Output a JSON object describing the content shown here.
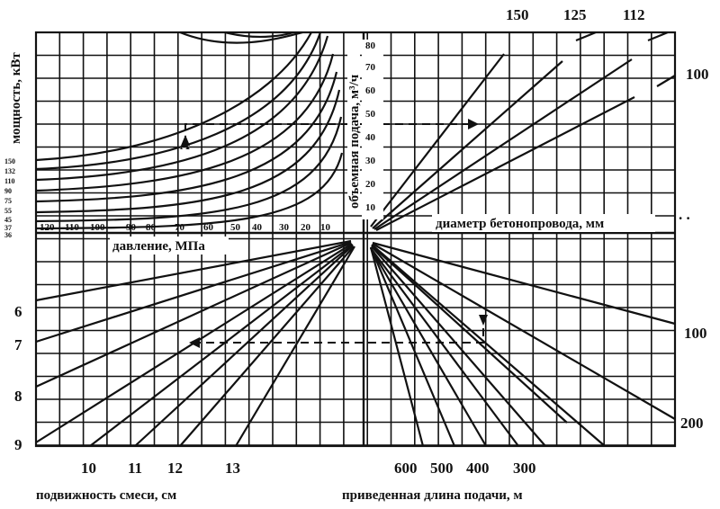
{
  "labels": {
    "power": "мощность, кВт",
    "volume_flow": "объемная подача, м³/ч",
    "pressure": "давление, МПа",
    "pipe_diameter": "диаметр бетонопровода, мм",
    "mobility": "подвижность смеси, см",
    "delivery_length": "приведенная длина подачи, м"
  },
  "scales": {
    "power_ticks": [
      "150",
      "132",
      "110",
      "90",
      "75",
      "55",
      "45",
      "37",
      "36"
    ],
    "volume_ticks": [
      "80",
      "70",
      "60",
      "50",
      "40",
      "30",
      "20",
      "10"
    ],
    "pressure_ticks": [
      "120",
      "110",
      "100",
      "90",
      "80",
      "70",
      "60",
      "50",
      "40",
      "30",
      "20",
      "10"
    ],
    "diameter_top": [
      "150",
      "125",
      "112"
    ],
    "diameter_right": "100",
    "mobility_left": [
      "6",
      "7",
      "8",
      "9"
    ],
    "mobility_bottom": [
      "10",
      "11",
      "12",
      "13"
    ],
    "length_bottom": [
      "600",
      "500",
      "400",
      "300"
    ],
    "length_right": [
      "100",
      "200"
    ],
    "corner_mark": ". ."
  },
  "markers": {
    "power_example": "A"
  }
}
